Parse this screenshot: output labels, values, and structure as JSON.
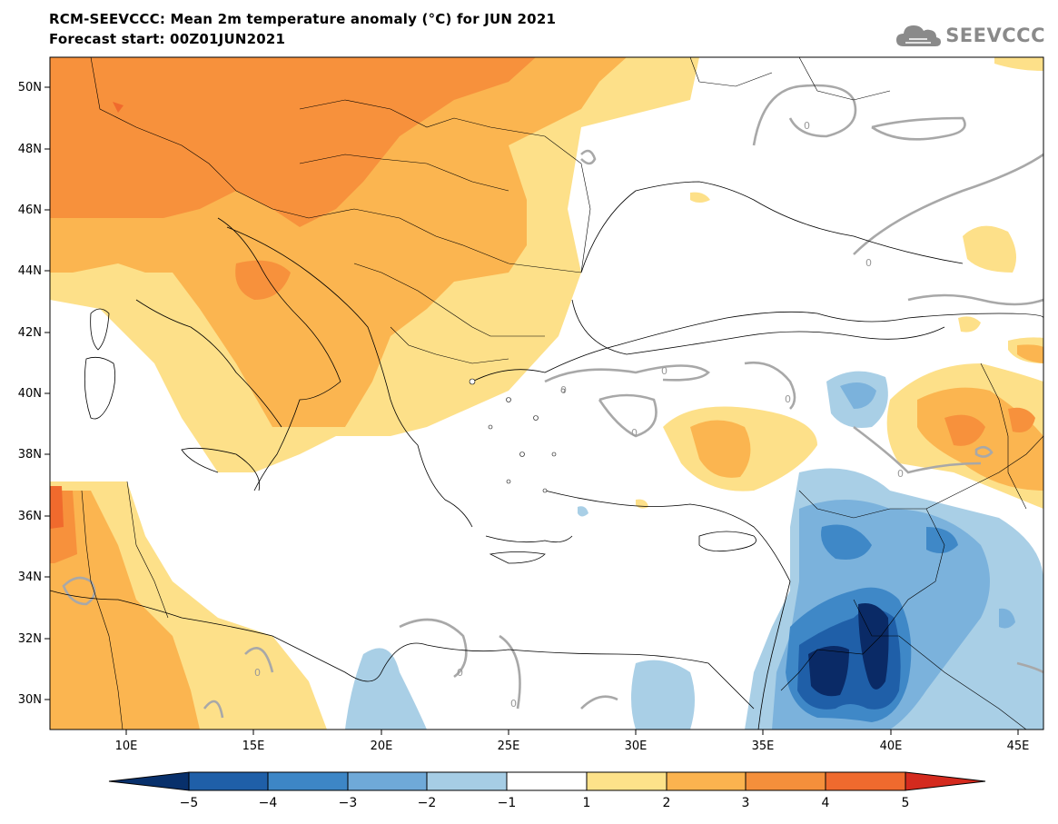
{
  "header": {
    "title": "RCM-SEEVCCC: Mean 2m temperature anomaly (°C) for JUN 2021",
    "subtitle": "Forecast start: 00Z01JUN2021"
  },
  "logo": {
    "text": "SEEVCCC",
    "icon": "cloud-icon"
  },
  "axes": {
    "lat_labels": [
      "50N",
      "48N",
      "46N",
      "44N",
      "42N",
      "40N",
      "38N",
      "36N",
      "34N",
      "32N",
      "30N"
    ],
    "lon_labels": [
      "10E",
      "15E",
      "20E",
      "25E",
      "30E",
      "35E",
      "40E",
      "45E"
    ]
  },
  "contour_labels": [
    "0",
    "0",
    "0",
    "0",
    "0",
    "0",
    "0",
    "0",
    "0",
    "0"
  ],
  "colorbar": {
    "tick_labels": [
      "−5",
      "−4",
      "−3",
      "−2",
      "−1",
      "1",
      "2",
      "3",
      "4",
      "5"
    ],
    "colors": [
      "#08306b",
      "#1f5fa8",
      "#3d86c6",
      "#6fa9d8",
      "#a6cde5",
      "#ffffff",
      "#fde28a",
      "#fbb34f",
      "#f48f3b",
      "#ef6a2e",
      "#e63d2a",
      "#d42a1e"
    ]
  },
  "legend_colors": {
    "neg5": "#0a2a66",
    "neg4": "#1f5fa8",
    "neg3": "#3f88c7",
    "neg2": "#7bb2dc",
    "neg1": "#a9cfe6",
    "zero": "#ffffff",
    "pos1": "#fde089",
    "pos2": "#fbb550",
    "pos3": "#f7913c",
    "pos4": "#f06a2d"
  }
}
